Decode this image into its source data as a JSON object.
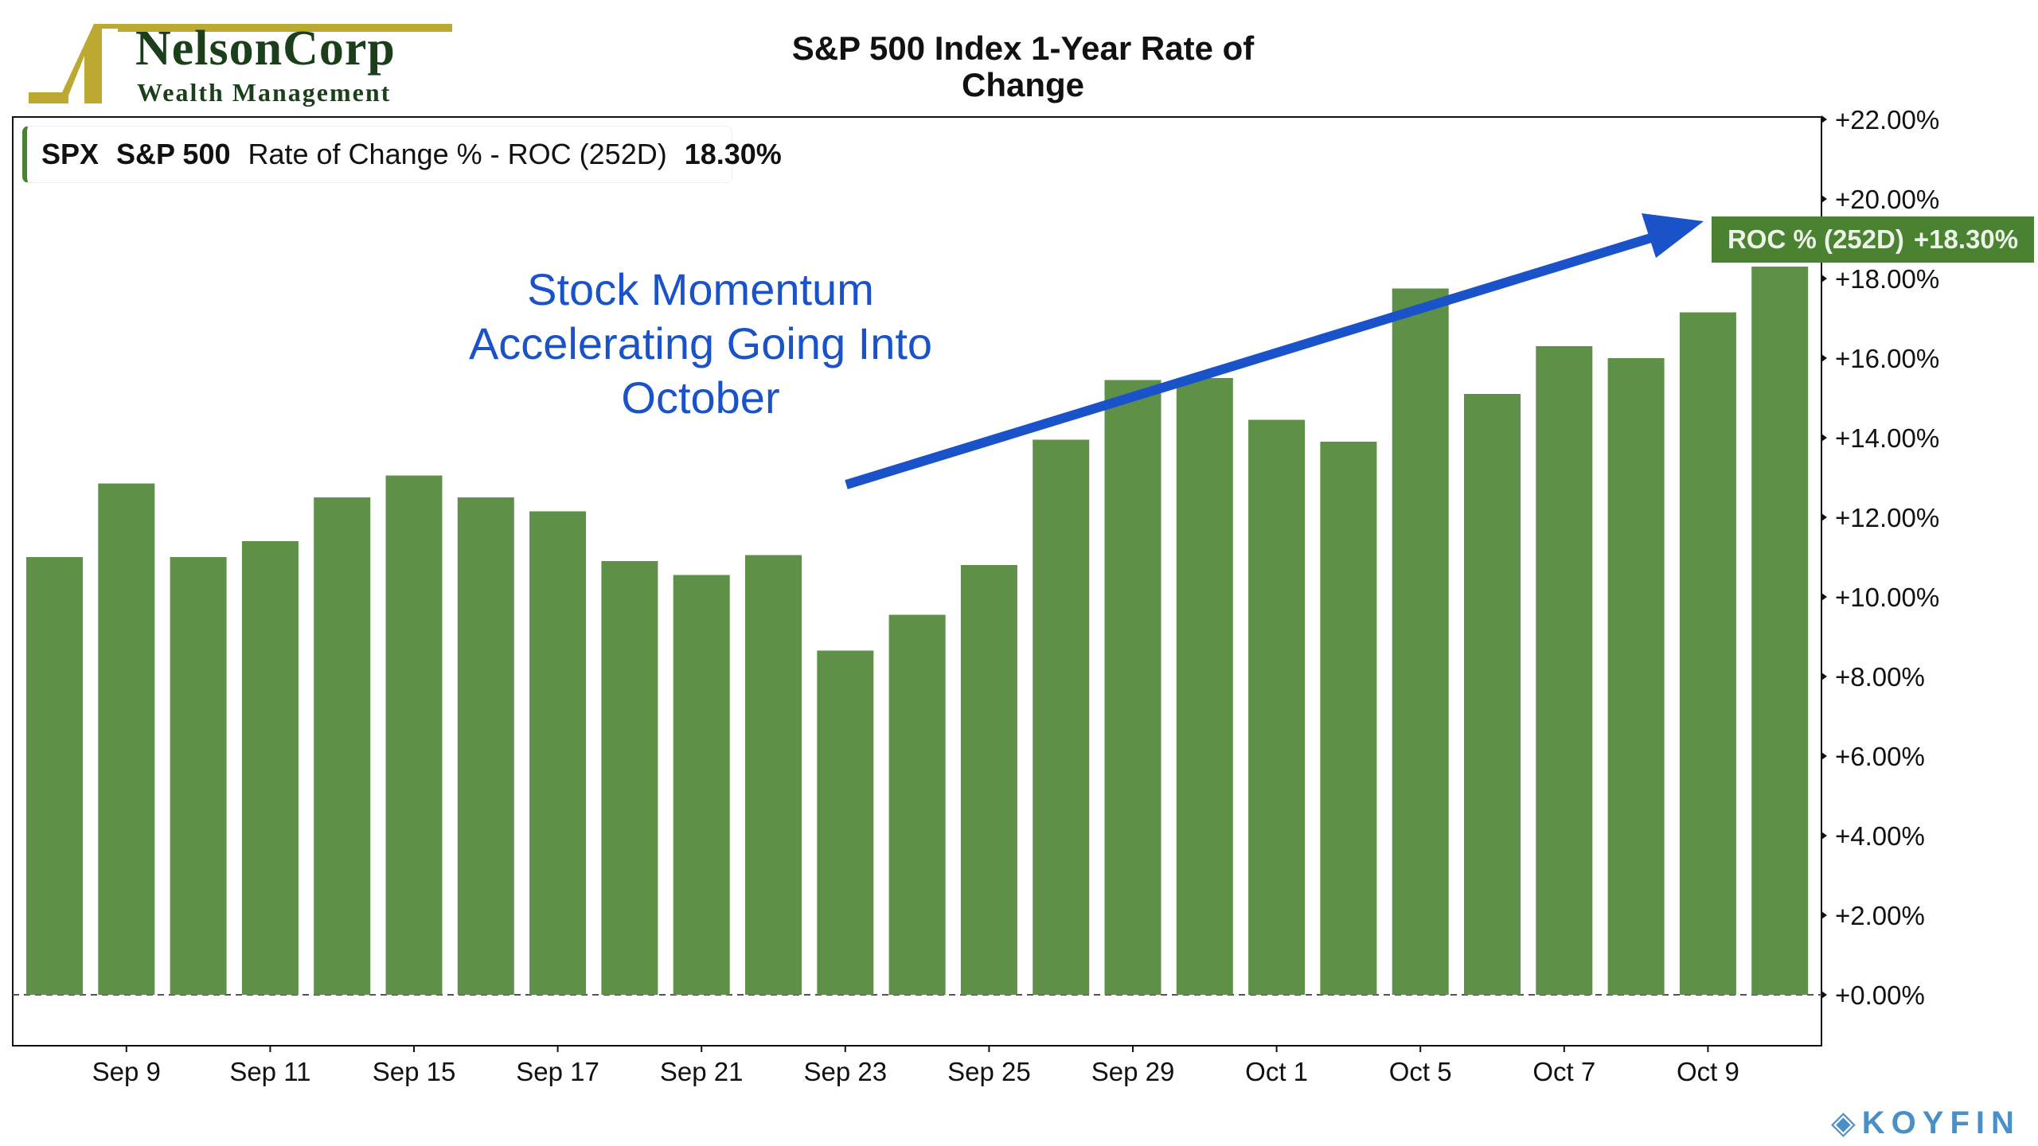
{
  "logo": {
    "name": "NelsonCorp",
    "tagline": "Wealth Management",
    "color": "#bca932"
  },
  "watermark": "KOYFIN",
  "legend": {
    "ticker": "SPX",
    "name": "S&P 500",
    "indicator": "Rate of Change % - ROC (252D)",
    "value": "18.30%"
  },
  "badge": {
    "label": "ROC % (252D)",
    "value": "+18.30%"
  },
  "annotation": [
    "Stock Momentum",
    "Accelerating Going Into",
    "October"
  ],
  "chart_data": {
    "type": "bar",
    "title": "S&P 500 Index 1-Year Rate of Change",
    "title_lines": [
      "S&P 500 Index 1-Year Rate of",
      "Change"
    ],
    "categories": [
      "",
      "Sep 9",
      "",
      "Sep 11",
      "",
      "Sep 15",
      "",
      "Sep 17",
      "",
      "Sep 21",
      "",
      "Sep 23",
      "",
      "Sep 25",
      "",
      "Sep 29",
      "",
      "Oct 1",
      "",
      "Oct 5",
      "",
      "Oct 7",
      "",
      "Oct 9",
      ""
    ],
    "values": [
      11.0,
      12.85,
      11.0,
      11.4,
      12.5,
      13.05,
      12.5,
      12.15,
      10.9,
      10.55,
      11.05,
      8.65,
      9.55,
      10.8,
      13.95,
      15.45,
      15.5,
      14.45,
      13.9,
      17.75,
      15.1,
      16.3,
      16.0,
      17.15,
      18.3
    ],
    "ylim": [
      -1.2,
      22
    ],
    "yticks": [
      "+0.00%",
      "+2.00%",
      "+4.00%",
      "+6.00%",
      "+8.00%",
      "+10.00%",
      "+12.00%",
      "+14.00%",
      "+16.00%",
      "+18.00%",
      "+20.00%",
      "+22.00%"
    ],
    "ytick_values": [
      0,
      2,
      4,
      6,
      8,
      10,
      12,
      14,
      16,
      18,
      20,
      22
    ],
    "y_axis_position": "right",
    "grid": false,
    "bar_color": "#5f9048",
    "badge_color": "#4a8232",
    "arrow_color": "#1a52c9"
  }
}
